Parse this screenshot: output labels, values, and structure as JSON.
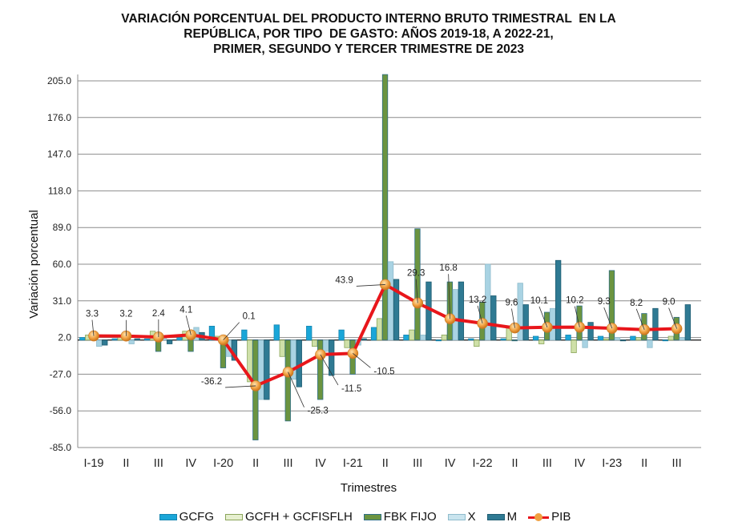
{
  "chart_data": {
    "type": "bar+line",
    "title_lines": [
      "VARIACIÓN PORCENTUAL DEL PRODUCTO INTERNO BRUTO TRIMESTRAL  EN LA",
      "REPÚBLICA, POR TIPO  DE GASTO: AÑOS 2019-18, A 2022-21,",
      "PRIMER, SEGUNDO Y TERCER TRIMESTRE DE 2023"
    ],
    "xlabel": "Trimestres",
    "ylabel": "Variación porcentual",
    "ylim": [
      -85.0,
      205.0
    ],
    "yticks": [
      "205.0",
      "176.0",
      "147.0",
      "118.0",
      "89.0",
      "60.0",
      "31.0",
      "2.0",
      "-27.0",
      "-56.0",
      "-85.0"
    ],
    "ytick_values": [
      205,
      176,
      147,
      118,
      89,
      60,
      31,
      2,
      -27,
      -56,
      -85
    ],
    "grid": true,
    "legend_position": "bottom",
    "categories": [
      "I-19",
      "II",
      "III",
      "IV",
      "I-20",
      "II",
      "III",
      "IV",
      "I-21",
      "II",
      "III",
      "IV",
      "I-22",
      "II",
      "III",
      "IV",
      "I-23",
      "II",
      "III"
    ],
    "series": [
      {
        "name": "GCFG",
        "kind": "bar",
        "color": "#1aa6d8",
        "values": [
          2,
          1,
          1,
          2,
          11,
          8,
          12,
          11,
          8,
          10,
          4,
          0,
          1,
          1,
          3,
          4,
          3,
          3,
          0
        ]
      },
      {
        "name": "GCFH + GCFISFLH",
        "kind": "bar",
        "color": "#cfe0a8",
        "values": [
          4,
          4,
          7,
          7,
          3,
          -33,
          -13,
          -5,
          -6,
          17,
          8,
          4,
          -5,
          11,
          -3,
          -10,
          1,
          2,
          3
        ]
      },
      {
        "name": "FBK FIJO",
        "kind": "bar",
        "color": "#6b9440",
        "values": [
          3,
          5,
          -9,
          -9,
          -22,
          -79,
          -64,
          -47,
          -27,
          210,
          88,
          46,
          30,
          0,
          22,
          27,
          55,
          21,
          18
        ]
      },
      {
        "name": "X",
        "kind": "bar",
        "color": "#a9d3e3",
        "values": [
          -5,
          -3,
          2,
          10,
          -13,
          -47,
          -31,
          -9,
          -4,
          62,
          4,
          40,
          60,
          45,
          25,
          -6,
          2,
          -6,
          2
        ]
      },
      {
        "name": "M",
        "kind": "bar",
        "color": "#2f7a93",
        "values": [
          -4,
          1,
          -3,
          6,
          -16,
          -47,
          -37,
          -28,
          1,
          48,
          46,
          46,
          35,
          28,
          63,
          14,
          0,
          25,
          28
        ]
      },
      {
        "name": "PIB",
        "kind": "line",
        "color": "#e8161b",
        "marker_color": "#f0a040",
        "values": [
          3.3,
          3.2,
          2.4,
          4.1,
          0.1,
          -36.2,
          -25.3,
          -11.5,
          -10.5,
          43.9,
          29.3,
          16.8,
          13.2,
          9.6,
          10.1,
          10.2,
          9.3,
          8.2,
          9.0
        ],
        "labels": [
          "3.3",
          "3.2",
          "2.4",
          "4.1",
          "0.1",
          "-36.2",
          "-25.3",
          "-11.5",
          "-10.5",
          "43.9",
          "29.3",
          "16.8",
          "13.2",
          "9.6",
          "10.1",
          "10.2",
          "9.3",
          "8.2",
          "9.0"
        ]
      }
    ]
  }
}
